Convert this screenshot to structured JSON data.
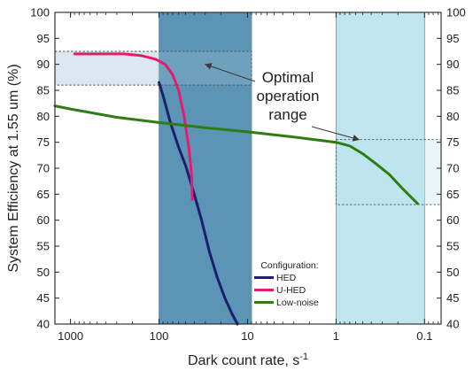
{
  "chart_data": {
    "type": "line",
    "xlabel": "Dark count rate, s",
    "xlabel_superscript": "-1",
    "ylabel": "System Efficiency at 1.55 um (%)",
    "x_scale": "log",
    "x_reversed": true,
    "xlim": [
      1500,
      0.065
    ],
    "ylim": [
      40,
      100
    ],
    "x_ticks": [
      1000,
      100,
      10,
      1,
      0.1
    ],
    "x_tick_labels": [
      "1000",
      "100",
      "10",
      "1",
      "0.1"
    ],
    "y_ticks": [
      40,
      45,
      50,
      55,
      60,
      65,
      70,
      75,
      80,
      85,
      90,
      95,
      100
    ],
    "y_tick_labels": [
      "40",
      "45",
      "50",
      "55",
      "60",
      "65",
      "70",
      "75",
      "80",
      "85",
      "90",
      "95",
      "100"
    ],
    "right_axis_mirrors_left": true,
    "grid": false,
    "series": [
      {
        "name": "HED",
        "color": "#1a1f6e",
        "points": [
          [
            100,
            86.5
          ],
          [
            90,
            84
          ],
          [
            75,
            79
          ],
          [
            60,
            74
          ],
          [
            50,
            70.5
          ],
          [
            40,
            65
          ],
          [
            33,
            60
          ],
          [
            27,
            54
          ],
          [
            22,
            49
          ],
          [
            18,
            45
          ],
          [
            15,
            42
          ],
          [
            13,
            40
          ]
        ]
      },
      {
        "name": "U-HED",
        "color": "#e8196e",
        "points": [
          [
            900,
            92
          ],
          [
            600,
            92
          ],
          [
            400,
            92
          ],
          [
            250,
            92
          ],
          [
            160,
            91.7
          ],
          [
            110,
            91
          ],
          [
            85,
            90
          ],
          [
            70,
            88
          ],
          [
            60,
            85
          ],
          [
            52,
            80
          ],
          [
            46,
            74
          ],
          [
            43,
            69
          ],
          [
            42,
            64
          ]
        ]
      },
      {
        "name": "Low-noise",
        "color": "#2e7d12",
        "points": [
          [
            1500,
            82
          ],
          [
            1000,
            81.4
          ],
          [
            300,
            79.8
          ],
          [
            100,
            78.8
          ],
          [
            30,
            77.8
          ],
          [
            10,
            77
          ],
          [
            3,
            76
          ],
          [
            1,
            75
          ],
          [
            0.7,
            74.3
          ],
          [
            0.5,
            72.8
          ],
          [
            0.35,
            70.8
          ],
          [
            0.25,
            68.8
          ],
          [
            0.18,
            66.2
          ],
          [
            0.12,
            63.2
          ]
        ]
      }
    ],
    "shaded_regions": [
      {
        "x_range": [
          100,
          9
        ],
        "color": "#5b94b5"
      },
      {
        "x_range": [
          1,
          0.1
        ],
        "color": "#bfe5ef"
      }
    ],
    "dashed_boxes": [
      {
        "x_range": [
          1500,
          9
        ],
        "y_range": [
          86,
          92.5
        ]
      },
      {
        "x_range": [
          1,
          0.065
        ],
        "y_range": [
          63,
          75.5
        ]
      }
    ],
    "annotation": {
      "lines": [
        "Optimal",
        "operation",
        "range"
      ],
      "arrow_targets": [
        {
          "x": 30,
          "y": 90
        },
        {
          "x": 0.55,
          "y": 75.5
        }
      ]
    },
    "legend": {
      "title": "Configuration:",
      "placement": "bottom-right of shaded band",
      "items": [
        "HED",
        "U-HED",
        "Low-noise"
      ]
    }
  }
}
